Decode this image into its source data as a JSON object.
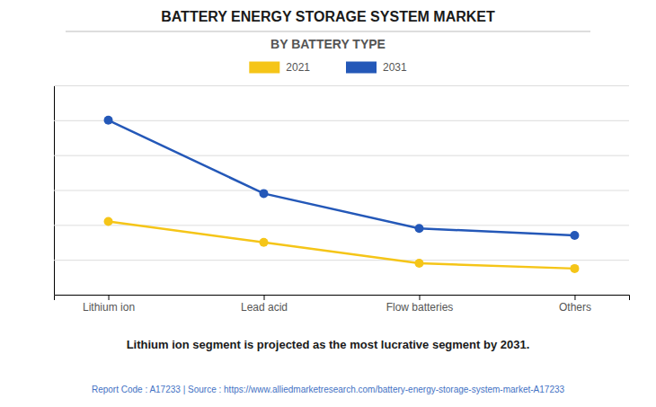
{
  "chart_data": {
    "type": "line",
    "title": "BATTERY ENERGY STORAGE SYSTEM MARKET",
    "subtitle": "BY BATTERY TYPE",
    "annotation": "Lithium ion segment is projected as the most lucrative segment by 2031.",
    "footer": "Report Code : A17233  |  Source : https://www.alliedmarketresearch.com/battery-energy-storage-system-market-A17233",
    "categories": [
      "Lithium ion",
      "Lead acid",
      "Flow batteries",
      "Others"
    ],
    "series": [
      {
        "name": "2021",
        "color": "#f5c518",
        "marker": "circle",
        "values": [
          4.2,
          3.0,
          1.8,
          1.5
        ]
      },
      {
        "name": "2031",
        "color": "#2458b8",
        "marker": "circle",
        "values": [
          10.0,
          5.8,
          3.8,
          3.4
        ]
      }
    ],
    "ylim": [
      0,
      12
    ],
    "yticks": [
      0,
      2,
      4,
      6,
      8,
      10,
      12
    ],
    "grid": true,
    "tick_labels": "x",
    "legend": "top"
  }
}
